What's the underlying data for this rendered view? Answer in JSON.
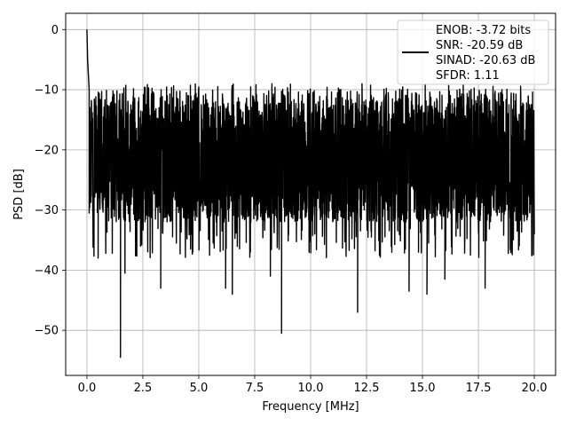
{
  "chart_data": {
    "type": "line",
    "title": "",
    "xlabel": "Frequency [MHz]",
    "ylabel": "PSD [dB]",
    "xlim": [
      -0.95,
      20.95
    ],
    "ylim": [
      -57.5,
      2.7
    ],
    "xticks": [
      0,
      2.5,
      5,
      7.5,
      10,
      12.5,
      15,
      17.5,
      20
    ],
    "xtick_labels": [
      "0.0",
      "2.5",
      "5.0",
      "7.5",
      "10.0",
      "12.5",
      "15.0",
      "17.5",
      "20.0"
    ],
    "yticks": [
      0,
      -10,
      -20,
      -30,
      -40,
      -50
    ],
    "ytick_labels": [
      "0",
      "−10",
      "−20",
      "−30",
      "−40",
      "−50"
    ],
    "grid": true,
    "legend_position": "top-right",
    "series": [
      {
        "name": "ENOB: -3.72 bits\nSNR: -20.59 dB\nSINAD: -20.63 dB\nSFDR: 1.11",
        "color": "#000000",
        "x_range": [
          0,
          20
        ],
        "noise_band": {
          "typical_low": -30,
          "typical_high": -13,
          "mean": -22
        },
        "peaks": [
          {
            "x": 0.0,
            "y": 0
          },
          {
            "x": 0.03,
            "y": -5
          },
          {
            "x": 0.1,
            "y": -10
          }
        ],
        "notable_dips": [
          {
            "x": 0.1,
            "y": -30.5
          },
          {
            "x": 0.5,
            "y": -38
          },
          {
            "x": 1.5,
            "y": -54.5
          },
          {
            "x": 1.7,
            "y": -40.5
          },
          {
            "x": 3.3,
            "y": -43
          },
          {
            "x": 6.2,
            "y": -43
          },
          {
            "x": 6.5,
            "y": -44
          },
          {
            "x": 8.2,
            "y": -41
          },
          {
            "x": 8.7,
            "y": -50.5
          },
          {
            "x": 12.1,
            "y": -47
          },
          {
            "x": 14.4,
            "y": -43.5
          },
          {
            "x": 15.2,
            "y": -44
          },
          {
            "x": 16.0,
            "y": -41.5
          },
          {
            "x": 17.8,
            "y": -43
          }
        ]
      }
    ]
  }
}
